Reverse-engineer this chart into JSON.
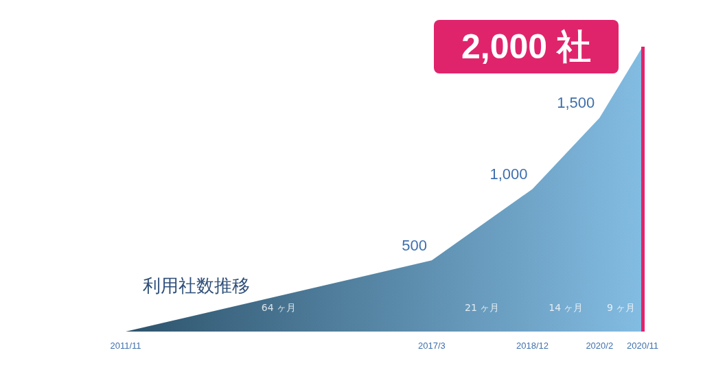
{
  "chart_data": {
    "type": "area",
    "title": "利用社数推移",
    "x": [
      "2011-11",
      "2017-03",
      "2018-12",
      "2020-02",
      "2020-11"
    ],
    "series": [
      {
        "color": "#5aa6d8",
        "values": [
          0,
          500,
          1000,
          1500,
          2000
        ],
        "value_labels": [
          null,
          "500",
          "1,000",
          "1,500",
          "2,000 社"
        ]
      }
    ],
    "xlim": [
      "2011-11",
      "2020-11"
    ],
    "xticks": [
      {
        "value": "2011-11",
        "label": "2011/11"
      },
      {
        "value": "2017-03",
        "label": "2017/3"
      },
      {
        "value": "2018-12",
        "label": "2018/12"
      },
      {
        "value": "2020-02",
        "label": "2020/2"
      },
      {
        "value": "2020-11",
        "label": "2020/11"
      }
    ],
    "ylim": [
      0,
      2000
    ],
    "tick_labels": "x",
    "ref_lines": [
      {
        "axis": "x",
        "value": "2020-11",
        "color": "#e0246c"
      }
    ],
    "annotations": [
      "64 ヶ月",
      "21 ヶ月",
      "14 ヶ月",
      "9 ヶ月"
    ]
  }
}
